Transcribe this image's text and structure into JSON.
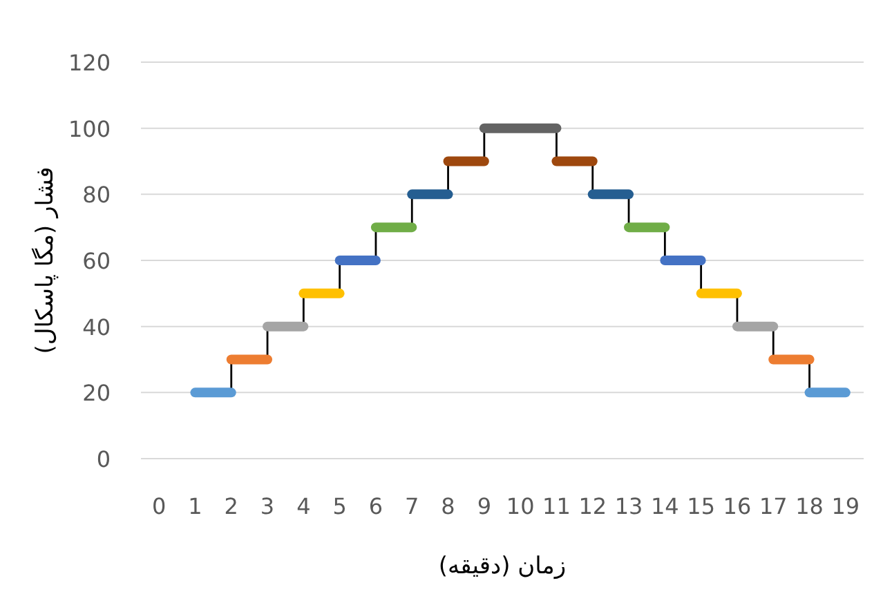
{
  "chart_data": {
    "type": "line",
    "xlabel": "زمان (دقیقه)",
    "ylabel": "فشار (مگا پاسکال)",
    "xlim": [
      -0.5,
      19.5
    ],
    "xticks": [
      0,
      1,
      2,
      3,
      4,
      5,
      6,
      7,
      8,
      9,
      10,
      11,
      12,
      13,
      14,
      15,
      16,
      17,
      18,
      19
    ],
    "ylim": [
      0,
      120
    ],
    "yticks": [
      0,
      20,
      40,
      60,
      80,
      100,
      120
    ],
    "grid": "y",
    "marker": "none",
    "series": [
      {
        "color": "#000000",
        "x": [
          2,
          2
        ],
        "values": [
          20,
          30
        ]
      },
      {
        "color": "#000000",
        "x": [
          3,
          3
        ],
        "values": [
          30,
          40
        ]
      },
      {
        "color": "#000000",
        "x": [
          4,
          4
        ],
        "values": [
          40,
          50
        ]
      },
      {
        "color": "#000000",
        "x": [
          5,
          5
        ],
        "values": [
          50,
          60
        ]
      },
      {
        "color": "#000000",
        "x": [
          6,
          6
        ],
        "values": [
          60,
          70
        ]
      },
      {
        "color": "#000000",
        "x": [
          7,
          7
        ],
        "values": [
          70,
          80
        ]
      },
      {
        "color": "#000000",
        "x": [
          8,
          8
        ],
        "values": [
          80,
          90
        ]
      },
      {
        "color": "#000000",
        "x": [
          9,
          9
        ],
        "values": [
          90,
          100
        ]
      },
      {
        "color": "#000000",
        "x": [
          11,
          11
        ],
        "values": [
          100,
          90
        ]
      },
      {
        "color": "#000000",
        "x": [
          12,
          12
        ],
        "values": [
          90,
          80
        ]
      },
      {
        "color": "#000000",
        "x": [
          13,
          13
        ],
        "values": [
          80,
          70
        ]
      },
      {
        "color": "#000000",
        "x": [
          14,
          14
        ],
        "values": [
          70,
          60
        ]
      },
      {
        "color": "#000000",
        "x": [
          15,
          15
        ],
        "values": [
          60,
          50
        ]
      },
      {
        "color": "#000000",
        "x": [
          16,
          16
        ],
        "values": [
          50,
          40
        ]
      },
      {
        "color": "#000000",
        "x": [
          17,
          17
        ],
        "values": [
          40,
          30
        ]
      },
      {
        "color": "#000000",
        "x": [
          18,
          18
        ],
        "values": [
          30,
          20
        ]
      },
      {
        "color": "#5b9bd5",
        "x": [
          1,
          2
        ],
        "values": [
          20,
          20
        ]
      },
      {
        "color": "#ed7d31",
        "x": [
          2,
          3
        ],
        "values": [
          30,
          30
        ]
      },
      {
        "color": "#a5a5a5",
        "x": [
          3,
          4
        ],
        "values": [
          40,
          40
        ]
      },
      {
        "color": "#ffc000",
        "x": [
          4,
          5
        ],
        "values": [
          50,
          50
        ]
      },
      {
        "color": "#4472c4",
        "x": [
          5,
          6
        ],
        "values": [
          60,
          60
        ]
      },
      {
        "color": "#70ad47",
        "x": [
          6,
          7
        ],
        "values": [
          70,
          70
        ]
      },
      {
        "color": "#255e91",
        "x": [
          7,
          8
        ],
        "values": [
          80,
          80
        ]
      },
      {
        "color": "#9e480e",
        "x": [
          8,
          9
        ],
        "values": [
          90,
          90
        ]
      },
      {
        "color": "#636363",
        "x": [
          9,
          11
        ],
        "values": [
          100,
          100
        ]
      },
      {
        "color": "#9e480e",
        "x": [
          11,
          12
        ],
        "values": [
          90,
          90
        ]
      },
      {
        "color": "#255e91",
        "x": [
          12,
          13
        ],
        "values": [
          80,
          80
        ]
      },
      {
        "color": "#70ad47",
        "x": [
          13,
          14
        ],
        "values": [
          70,
          70
        ]
      },
      {
        "color": "#4472c4",
        "x": [
          14,
          15
        ],
        "values": [
          60,
          60
        ]
      },
      {
        "color": "#ffc000",
        "x": [
          15,
          16
        ],
        "values": [
          50,
          50
        ]
      },
      {
        "color": "#a5a5a5",
        "x": [
          16,
          17
        ],
        "values": [
          40,
          40
        ]
      },
      {
        "color": "#ed7d31",
        "x": [
          17,
          18
        ],
        "values": [
          30,
          30
        ]
      },
      {
        "color": "#5b9bd5",
        "x": [
          18,
          19
        ],
        "values": [
          20,
          20
        ]
      }
    ]
  }
}
